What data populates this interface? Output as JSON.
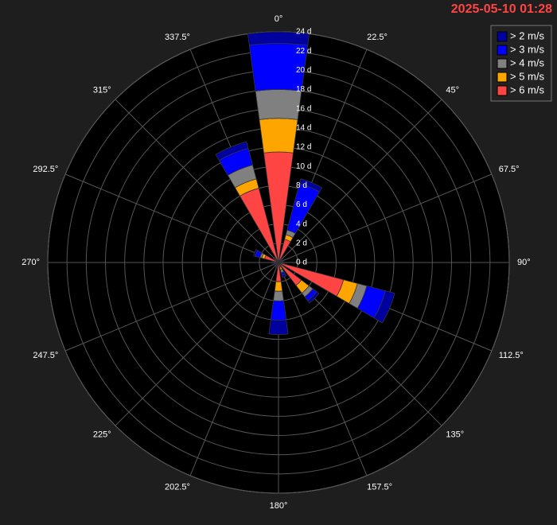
{
  "chart_data": {
    "type": "windrose",
    "title": "2025-05-10 01:28",
    "categories": [
      "0°",
      "22.5°",
      "45°",
      "67.5°",
      "90°",
      "112.5°",
      "135°",
      "157.5°",
      "180°",
      "202.5°",
      "225°",
      "247.5°",
      "270°",
      "292.5°",
      "315°",
      "337.5°"
    ],
    "series": [
      {
        "name": "> 2 m/s",
        "color": "#00009e",
        "values": [
          1.2,
          0.5,
          0.1,
          0.1,
          0.1,
          1,
          0.3,
          0.2,
          1.5,
          0.1,
          0.1,
          0.1,
          0.1,
          0.2,
          0.1,
          0.7
        ]
      },
      {
        "name": "> 3 m/s",
        "color": "#0000ff",
        "values": [
          4.8,
          5,
          0.1,
          0.1,
          0.1,
          2,
          0.5,
          0.3,
          2,
          0.1,
          0.1,
          0.1,
          0.1,
          0.5,
          0.1,
          1.8
        ]
      },
      {
        "name": "> 4 m/s",
        "color": "#808080",
        "values": [
          3,
          0.5,
          0.1,
          0.1,
          0.1,
          1,
          0.5,
          0.3,
          1,
          0.1,
          0.1,
          0.1,
          0.1,
          0.2,
          0.1,
          1.5
        ]
      },
      {
        "name": "> 5 m/s",
        "color": "#ffa500",
        "values": [
          3.5,
          0.5,
          0.1,
          0.1,
          0.1,
          1.5,
          1,
          0.3,
          1,
          0.1,
          0.1,
          0.1,
          0.1,
          0.3,
          0.1,
          1
        ]
      },
      {
        "name": "> 6 m/s",
        "color": "#ff4444",
        "values": [
          11.5,
          2.5,
          0.2,
          0.1,
          0.2,
          7,
          3,
          0.5,
          2,
          0.2,
          0.1,
          0.1,
          0.3,
          1.5,
          0.3,
          8
        ]
      }
    ],
    "rlim": [
      0,
      24
    ],
    "rticks": [
      {
        "value": 0,
        "label": "0 d"
      },
      {
        "value": 2,
        "label": "2 d"
      },
      {
        "value": 4,
        "label": "4 d"
      },
      {
        "value": 6,
        "label": "6 d"
      },
      {
        "value": 8,
        "label": "8 d"
      },
      {
        "value": 10,
        "label": "10 d"
      },
      {
        "value": 12,
        "label": "12 d"
      },
      {
        "value": 14,
        "label": "14 d"
      },
      {
        "value": 16,
        "label": "16 d"
      },
      {
        "value": 18,
        "label": "18 d"
      },
      {
        "value": 20,
        "label": "20 d"
      },
      {
        "value": 22,
        "label": "22 d"
      },
      {
        "value": 24,
        "label": "24 d"
      }
    ],
    "grid": true,
    "legend": "upper right"
  }
}
